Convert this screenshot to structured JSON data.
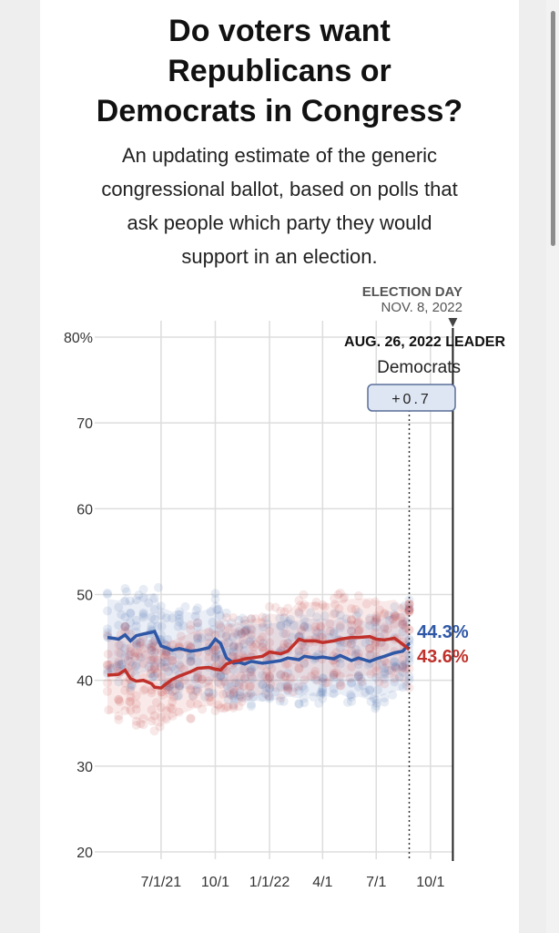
{
  "header": {
    "title_lines": [
      "Do voters want",
      "Republicans or",
      "Democrats in Congress?"
    ],
    "subtitle_lines": [
      "An updating estimate of the generic",
      "congressional ballot, based on polls that",
      "ask people which party they would",
      "support in an election."
    ]
  },
  "colors": {
    "democrats": "#2e57a6",
    "republicans": "#c0312b",
    "grid": "#dddddd",
    "leader_box_bg": "#dfe6f3",
    "leader_box_border": "#5a6f99"
  },
  "chart_data": {
    "type": "line",
    "ylim": [
      20,
      80
    ],
    "yticks": [
      20,
      30,
      40,
      50,
      60,
      70,
      80
    ],
    "ytick_labels": [
      "20",
      "30",
      "40",
      "50",
      "60",
      "70",
      "80%"
    ],
    "xlim": [
      "2021-04-01",
      "2022-11-12"
    ],
    "xticks": [
      "2021-07-01",
      "2021-10-01",
      "2022-01-01",
      "2022-04-01",
      "2022-07-01",
      "2022-10-01"
    ],
    "xtick_labels": [
      "7/1/21",
      "10/1",
      "1/1/22",
      "4/1",
      "7/1",
      "10/1"
    ],
    "today": "2022-08-26",
    "election_day": "2022-11-08",
    "election_label": "ELECTION DAY",
    "election_date_label": "NOV. 8, 2022",
    "leader_label": "AUG. 26, 2022 LEADER",
    "leader_party": "Democrats",
    "leader_margin": "+0.7",
    "series": [
      {
        "name": "Democrats",
        "final_label": "44.3%",
        "x": [
          "2021-04-01",
          "2021-04-20",
          "2021-05-01",
          "2021-05-10",
          "2021-05-20",
          "2021-06-01",
          "2021-06-15",
          "2021-06-20",
          "2021-07-01",
          "2021-07-10",
          "2021-07-20",
          "2021-08-01",
          "2021-08-20",
          "2021-09-01",
          "2021-09-20",
          "2021-10-01",
          "2021-10-10",
          "2021-10-20",
          "2021-11-01",
          "2021-11-10",
          "2021-11-20",
          "2021-12-01",
          "2021-12-20",
          "2022-01-01",
          "2022-01-20",
          "2022-02-01",
          "2022-02-20",
          "2022-03-01",
          "2022-03-20",
          "2022-04-01",
          "2022-04-20",
          "2022-05-01",
          "2022-05-20",
          "2022-06-01",
          "2022-06-20",
          "2022-07-01",
          "2022-07-15",
          "2022-08-01",
          "2022-08-15",
          "2022-08-26"
        ],
        "values": [
          45.0,
          44.8,
          45.3,
          44.6,
          45.2,
          45.4,
          45.6,
          45.7,
          44.0,
          43.8,
          43.5,
          43.7,
          43.4,
          43.5,
          43.8,
          44.8,
          44.3,
          42.6,
          42.0,
          42.1,
          41.9,
          42.2,
          42.0,
          42.1,
          42.3,
          42.6,
          42.4,
          42.8,
          42.6,
          42.7,
          42.5,
          42.9,
          42.3,
          42.6,
          42.2,
          42.5,
          42.8,
          43.2,
          43.4,
          44.3
        ]
      },
      {
        "name": "Republicans",
        "final_label": "43.6%",
        "x": [
          "2021-04-01",
          "2021-04-20",
          "2021-05-01",
          "2021-05-10",
          "2021-05-20",
          "2021-06-01",
          "2021-06-15",
          "2021-06-20",
          "2021-07-01",
          "2021-07-10",
          "2021-07-20",
          "2021-08-01",
          "2021-08-20",
          "2021-09-01",
          "2021-09-20",
          "2021-10-01",
          "2021-10-10",
          "2021-10-20",
          "2021-11-01",
          "2021-11-10",
          "2021-11-20",
          "2021-12-01",
          "2021-12-20",
          "2022-01-01",
          "2022-01-20",
          "2022-02-01",
          "2022-02-20",
          "2022-03-01",
          "2022-03-20",
          "2022-04-01",
          "2022-04-20",
          "2022-05-01",
          "2022-05-20",
          "2022-06-01",
          "2022-06-20",
          "2022-07-01",
          "2022-07-15",
          "2022-08-01",
          "2022-08-15",
          "2022-08-26"
        ],
        "values": [
          40.6,
          40.7,
          41.2,
          40.2,
          39.9,
          40.0,
          39.6,
          39.2,
          39.1,
          39.6,
          40.1,
          40.5,
          41.0,
          41.4,
          41.5,
          41.3,
          41.2,
          41.9,
          42.2,
          42.3,
          42.5,
          42.6,
          42.8,
          43.3,
          43.1,
          43.4,
          44.8,
          44.6,
          44.6,
          44.4,
          44.6,
          44.8,
          45.0,
          45.0,
          45.1,
          44.8,
          44.7,
          44.9,
          44.2,
          43.6
        ]
      }
    ]
  }
}
